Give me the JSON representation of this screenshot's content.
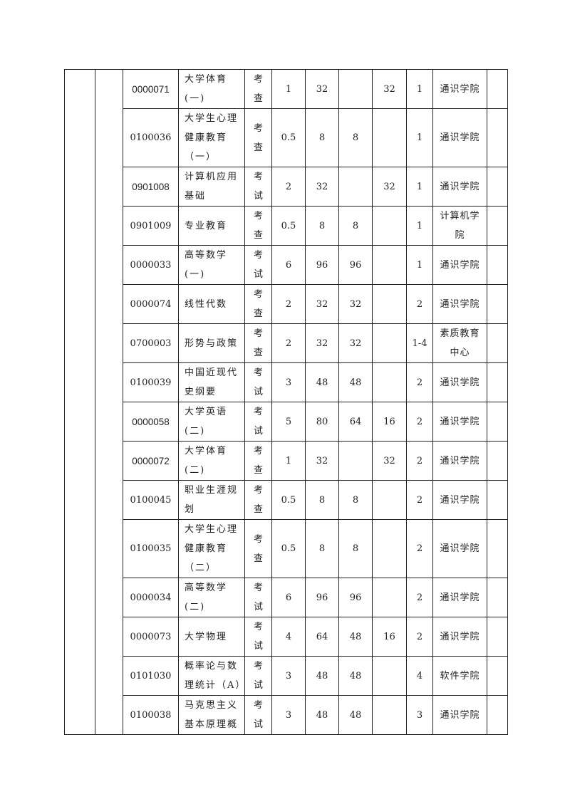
{
  "rows": [
    {
      "code": "0000071",
      "code_sans": true,
      "name": "大学体育\n(一)",
      "exam": "考\n查",
      "credits": "1",
      "hours": "32",
      "lecture": "",
      "practice": "32",
      "semester": "1",
      "dept": "通识学院",
      "note": ""
    },
    {
      "code": "0100036",
      "code_sans": false,
      "name": "大学生心理\n健康教育\n（一）",
      "exam": "考\n查",
      "credits": "0.5",
      "hours": "8",
      "lecture": "8",
      "practice": "",
      "semester": "1",
      "dept": "通识学院",
      "note": ""
    },
    {
      "code": "0901008",
      "code_sans": true,
      "name": "计算机应用\n基础",
      "exam": "考\n试",
      "credits": "2",
      "hours": "32",
      "lecture": "",
      "practice": "32",
      "semester": "1",
      "dept": "通识学院",
      "note": ""
    },
    {
      "code": "0901009",
      "code_sans": false,
      "name": "专业教育",
      "exam": "考\n查",
      "credits": "0.5",
      "hours": "8",
      "lecture": "8",
      "practice": "",
      "semester": "1",
      "dept": "计算机学\n院",
      "note": ""
    },
    {
      "code": "0000033",
      "code_sans": false,
      "name": "高等数学\n(一)",
      "exam": "考\n试",
      "credits": "6",
      "hours": "96",
      "lecture": "96",
      "practice": "",
      "semester": "1",
      "dept": "通识学院",
      "note": ""
    },
    {
      "code": "0000074",
      "code_sans": false,
      "name": "线性代数",
      "exam": "考\n查",
      "credits": "2",
      "hours": "32",
      "lecture": "32",
      "practice": "",
      "semester": "2",
      "dept": "通识学院",
      "note": ""
    },
    {
      "code": "0700003",
      "code_sans": false,
      "name": "形势与政策",
      "exam": "考\n查",
      "credits": "2",
      "hours": "32",
      "lecture": "32",
      "practice": "",
      "semester": "1-4",
      "dept": "素质教育\n中心",
      "note": ""
    },
    {
      "code": "0100039",
      "code_sans": false,
      "name": "中国近现代\n史纲要",
      "exam": "考\n试",
      "credits": "3",
      "hours": "48",
      "lecture": "48",
      "practice": "",
      "semester": "2",
      "dept": "通识学院",
      "note": ""
    },
    {
      "code": "0000058",
      "code_sans": true,
      "name": "大学英语\n(二)",
      "exam": "考\n试",
      "credits": "5",
      "hours": "80",
      "lecture": "64",
      "practice": "16",
      "semester": "2",
      "dept": "通识学院",
      "note": ""
    },
    {
      "code": "0000072",
      "code_sans": true,
      "name": "大学体育\n(二)",
      "exam": "考\n查",
      "credits": "1",
      "hours": "32",
      "lecture": "",
      "practice": "32",
      "semester": "2",
      "dept": "通识学院",
      "note": ""
    },
    {
      "code": "0100045",
      "code_sans": false,
      "name": "职业生涯规\n划",
      "exam": "考\n查",
      "credits": "0.5",
      "hours": "8",
      "lecture": "8",
      "practice": "",
      "semester": "2",
      "dept": "通识学院",
      "note": ""
    },
    {
      "code": "0100035",
      "code_sans": false,
      "name": "大学生心理\n健康教育\n（二）",
      "exam": "考\n查",
      "credits": "0.5",
      "hours": "8",
      "lecture": "8",
      "practice": "",
      "semester": "2",
      "dept": "通识学院",
      "note": ""
    },
    {
      "code": "0000034",
      "code_sans": false,
      "name": "高等数学\n(二)",
      "exam": "考\n试",
      "credits": "6",
      "hours": "96",
      "lecture": "96",
      "practice": "",
      "semester": "2",
      "dept": "通识学院",
      "note": ""
    },
    {
      "code": "0000073",
      "code_sans": false,
      "name": "大学物理",
      "exam": "考\n试",
      "credits": "4",
      "hours": "64",
      "lecture": "48",
      "practice": "16",
      "semester": "2",
      "dept": "通识学院",
      "note": ""
    },
    {
      "code": "0101030",
      "code_sans": false,
      "name": "概率论与数\n理统计（A）",
      "exam": "考\n试",
      "credits": "3",
      "hours": "48",
      "lecture": "48",
      "practice": "",
      "semester": "4",
      "dept": "软件学院",
      "note": ""
    },
    {
      "code": "0100038",
      "code_sans": false,
      "name": "马克思主义\n基本原理概",
      "exam": "考\n试",
      "credits": "3",
      "hours": "48",
      "lecture": "48",
      "practice": "",
      "semester": "3",
      "dept": "通识学院",
      "note": ""
    }
  ]
}
